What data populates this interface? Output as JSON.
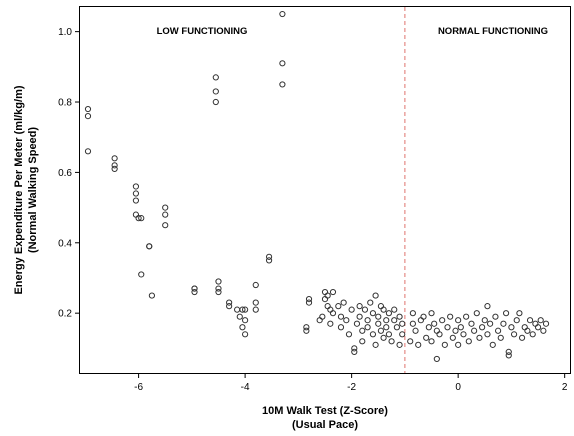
{
  "chart_data": {
    "type": "scatter",
    "title": "",
    "xlabel_line1": "10M Walk Test (Z-Score)",
    "xlabel_line2": "(Usual Pace)",
    "ylabel_line1": "Energy Expenditure Per Meter (ml/kg/m)",
    "ylabel_line2": "(Normal Walking Speed)",
    "xlim": [
      -7.1,
      2.1
    ],
    "ylim": [
      0.03,
      1.07
    ],
    "x_ticks": [
      -6,
      -4,
      -2,
      0,
      2
    ],
    "y_ticks": [
      0.2,
      0.4,
      0.6,
      0.8,
      1.0
    ],
    "x_tick_labels": [
      "-6",
      "-4",
      "-2",
      "0",
      "2"
    ],
    "y_tick_labels": [
      "0.2",
      "0.4",
      "0.6",
      "0.8",
      "1.0"
    ],
    "cutoff_x": -1.0,
    "cutoff_color": "#e0736e",
    "marker_color": "#333333",
    "grid": false,
    "annotations": {
      "left_region": "LOW FUNCTIONING",
      "right_region": "NORMAL FUNCTIONING"
    },
    "points": [
      [
        -6.95,
        0.78
      ],
      [
        -6.95,
        0.76
      ],
      [
        -6.95,
        0.66
      ],
      [
        -6.45,
        0.64
      ],
      [
        -6.45,
        0.62
      ],
      [
        -6.45,
        0.61
      ],
      [
        -6.05,
        0.56
      ],
      [
        -6.05,
        0.54
      ],
      [
        -6.05,
        0.52
      ],
      [
        -6.05,
        0.48
      ],
      [
        -6.0,
        0.47
      ],
      [
        -5.95,
        0.47
      ],
      [
        -5.95,
        0.31
      ],
      [
        -5.8,
        0.39
      ],
      [
        -5.8,
        0.39
      ],
      [
        -5.75,
        0.25
      ],
      [
        -5.5,
        0.5
      ],
      [
        -5.5,
        0.48
      ],
      [
        -5.5,
        0.45
      ],
      [
        -4.95,
        0.27
      ],
      [
        -4.95,
        0.27
      ],
      [
        -4.95,
        0.26
      ],
      [
        -4.55,
        0.87
      ],
      [
        -4.55,
        0.83
      ],
      [
        -4.55,
        0.8
      ],
      [
        -4.5,
        0.29
      ],
      [
        -4.5,
        0.27
      ],
      [
        -4.5,
        0.26
      ],
      [
        -4.3,
        0.23
      ],
      [
        -4.3,
        0.22
      ],
      [
        -4.15,
        0.21
      ],
      [
        -4.1,
        0.19
      ],
      [
        -4.05,
        0.21
      ],
      [
        -4.05,
        0.16
      ],
      [
        -4.0,
        0.21
      ],
      [
        -4.0,
        0.14
      ],
      [
        -4.0,
        0.18
      ],
      [
        -3.8,
        0.28
      ],
      [
        -3.8,
        0.23
      ],
      [
        -3.8,
        0.21
      ],
      [
        -3.55,
        0.35
      ],
      [
        -3.55,
        0.36
      ],
      [
        -3.3,
        1.05
      ],
      [
        -3.3,
        0.91
      ],
      [
        -3.3,
        0.85
      ],
      [
        -2.85,
        0.16
      ],
      [
        -2.85,
        0.15
      ],
      [
        -2.8,
        0.24
      ],
      [
        -2.8,
        0.23
      ],
      [
        -2.6,
        0.18
      ],
      [
        -2.55,
        0.19
      ],
      [
        -2.5,
        0.26
      ],
      [
        -2.5,
        0.24
      ],
      [
        -2.45,
        0.25
      ],
      [
        -2.45,
        0.22
      ],
      [
        -2.4,
        0.21
      ],
      [
        -2.4,
        0.17
      ],
      [
        -2.35,
        0.2
      ],
      [
        -2.35,
        0.26
      ],
      [
        -2.25,
        0.22
      ],
      [
        -2.2,
        0.19
      ],
      [
        -2.2,
        0.16
      ],
      [
        -2.15,
        0.23
      ],
      [
        -2.1,
        0.18
      ],
      [
        -2.05,
        0.14
      ],
      [
        -2.0,
        0.21
      ],
      [
        -1.95,
        0.1
      ],
      [
        -1.95,
        0.09
      ],
      [
        -1.9,
        0.17
      ],
      [
        -1.85,
        0.22
      ],
      [
        -1.85,
        0.19
      ],
      [
        -1.8,
        0.15
      ],
      [
        -1.8,
        0.12
      ],
      [
        -1.75,
        0.21
      ],
      [
        -1.7,
        0.18
      ],
      [
        -1.7,
        0.16
      ],
      [
        -1.65,
        0.23
      ],
      [
        -1.6,
        0.2
      ],
      [
        -1.6,
        0.14
      ],
      [
        -1.55,
        0.11
      ],
      [
        -1.55,
        0.25
      ],
      [
        -1.5,
        0.19
      ],
      [
        -1.5,
        0.17
      ],
      [
        -1.45,
        0.22
      ],
      [
        -1.45,
        0.15
      ],
      [
        -1.4,
        0.13
      ],
      [
        -1.4,
        0.21
      ],
      [
        -1.35,
        0.18
      ],
      [
        -1.35,
        0.16
      ],
      [
        -1.3,
        0.2
      ],
      [
        -1.3,
        0.14
      ],
      [
        -1.25,
        0.12
      ],
      [
        -1.2,
        0.18
      ],
      [
        -1.2,
        0.21
      ],
      [
        -1.15,
        0.16
      ],
      [
        -1.1,
        0.11
      ],
      [
        -1.1,
        0.19
      ],
      [
        -1.05,
        0.14
      ],
      [
        -1.05,
        0.17
      ],
      [
        -0.9,
        0.12
      ],
      [
        -0.85,
        0.2
      ],
      [
        -0.85,
        0.17
      ],
      [
        -0.8,
        0.15
      ],
      [
        -0.75,
        0.11
      ],
      [
        -0.7,
        0.18
      ],
      [
        -0.65,
        0.19
      ],
      [
        -0.6,
        0.13
      ],
      [
        -0.55,
        0.16
      ],
      [
        -0.5,
        0.2
      ],
      [
        -0.5,
        0.12
      ],
      [
        -0.45,
        0.17
      ],
      [
        -0.4,
        0.15
      ],
      [
        -0.4,
        0.07
      ],
      [
        -0.35,
        0.14
      ],
      [
        -0.3,
        0.18
      ],
      [
        -0.25,
        0.11
      ],
      [
        -0.2,
        0.16
      ],
      [
        -0.15,
        0.19
      ],
      [
        -0.1,
        0.13
      ],
      [
        -0.05,
        0.15
      ],
      [
        0.0,
        0.18
      ],
      [
        0.0,
        0.11
      ],
      [
        0.05,
        0.16
      ],
      [
        0.1,
        0.14
      ],
      [
        0.15,
        0.19
      ],
      [
        0.2,
        0.12
      ],
      [
        0.25,
        0.17
      ],
      [
        0.3,
        0.15
      ],
      [
        0.35,
        0.2
      ],
      [
        0.4,
        0.13
      ],
      [
        0.45,
        0.16
      ],
      [
        0.5,
        0.18
      ],
      [
        0.55,
        0.22
      ],
      [
        0.55,
        0.14
      ],
      [
        0.6,
        0.17
      ],
      [
        0.65,
        0.11
      ],
      [
        0.7,
        0.19
      ],
      [
        0.75,
        0.15
      ],
      [
        0.8,
        0.13
      ],
      [
        0.85,
        0.17
      ],
      [
        0.9,
        0.2
      ],
      [
        0.95,
        0.09
      ],
      [
        0.95,
        0.08
      ],
      [
        1.0,
        0.16
      ],
      [
        1.05,
        0.14
      ],
      [
        1.1,
        0.18
      ],
      [
        1.15,
        0.2
      ],
      [
        1.2,
        0.13
      ],
      [
        1.25,
        0.16
      ],
      [
        1.3,
        0.15
      ],
      [
        1.35,
        0.18
      ],
      [
        1.4,
        0.14
      ],
      [
        1.45,
        0.17
      ],
      [
        1.5,
        0.16
      ],
      [
        1.55,
        0.18
      ],
      [
        1.6,
        0.15
      ],
      [
        1.65,
        0.17
      ]
    ]
  }
}
